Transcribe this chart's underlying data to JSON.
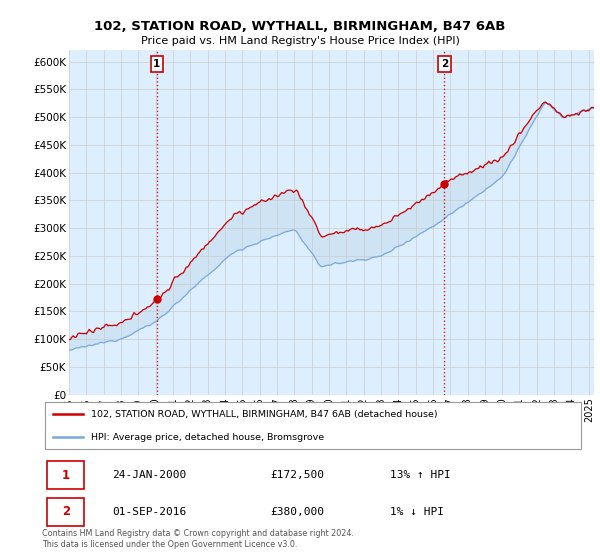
{
  "title": "102, STATION ROAD, WYTHALL, BIRMINGHAM, B47 6AB",
  "subtitle": "Price paid vs. HM Land Registry's House Price Index (HPI)",
  "ylabel_ticks": [
    "£0",
    "£50K",
    "£100K",
    "£150K",
    "£200K",
    "£250K",
    "£300K",
    "£350K",
    "£400K",
    "£450K",
    "£500K",
    "£550K",
    "£600K"
  ],
  "ytick_values": [
    0,
    50000,
    100000,
    150000,
    200000,
    250000,
    300000,
    350000,
    400000,
    450000,
    500000,
    550000,
    600000
  ],
  "ylim": [
    0,
    620000
  ],
  "xlim_start": 1995.0,
  "xlim_end": 2025.3,
  "xticks": [
    1995,
    1996,
    1997,
    1998,
    1999,
    2000,
    2001,
    2002,
    2003,
    2004,
    2005,
    2006,
    2007,
    2008,
    2009,
    2010,
    2011,
    2012,
    2013,
    2014,
    2015,
    2016,
    2017,
    2018,
    2019,
    2020,
    2021,
    2022,
    2023,
    2024,
    2025
  ],
  "sale1_x": 2000.07,
  "sale1_y": 172500,
  "sale2_x": 2016.67,
  "sale2_y": 380000,
  "sale_color": "#cc0000",
  "hpi_color": "#7aabdc",
  "fill_color": "#c8dff0",
  "vline_color": "#cc0000",
  "bg_color": "#ddeeff",
  "legend_line1": "102, STATION ROAD, WYTHALL, BIRMINGHAM, B47 6AB (detached house)",
  "legend_line2": "HPI: Average price, detached house, Bromsgrove",
  "table_row1": [
    "1",
    "24-JAN-2000",
    "£172,500",
    "13% ↑ HPI"
  ],
  "table_row2": [
    "2",
    "01-SEP-2016",
    "£380,000",
    "1% ↓ HPI"
  ],
  "footnote": "Contains HM Land Registry data © Crown copyright and database right 2024.\nThis data is licensed under the Open Government Licence v3.0.",
  "background_color": "#ffffff",
  "grid_color": "#cccccc"
}
